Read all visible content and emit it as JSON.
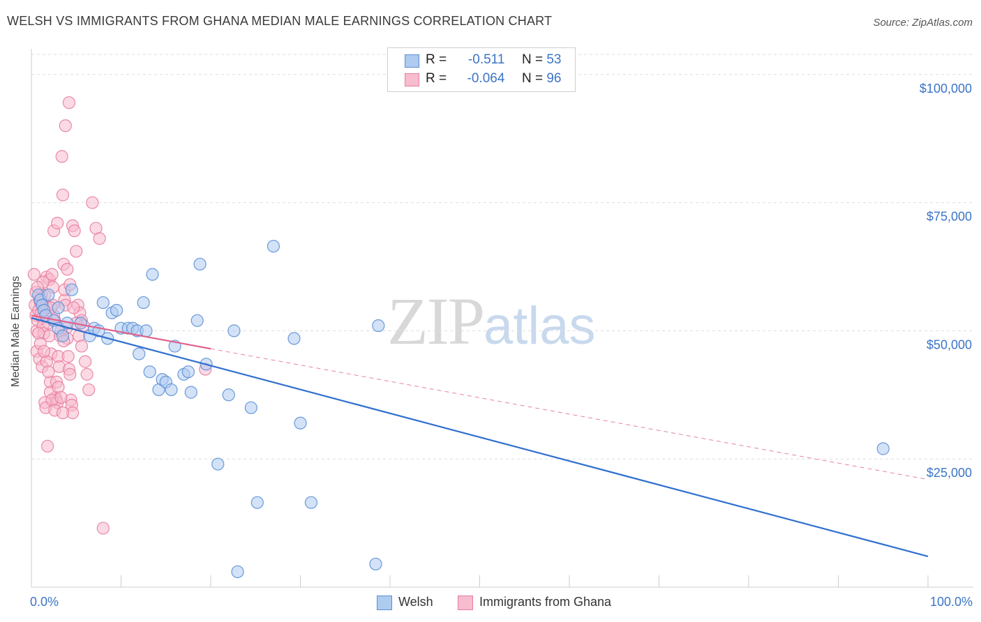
{
  "title": "WELSH VS IMMIGRANTS FROM GHANA MEDIAN MALE EARNINGS CORRELATION CHART",
  "source": "Source: ZipAtlas.com",
  "watermark": {
    "zip": "ZIP",
    "atlas": "atlas"
  },
  "colors": {
    "welsh_fill": "#aecbf0",
    "welsh_stroke": "#5b8fd6",
    "welsh_line": "#2f6fcf",
    "ghana_fill": "#f7bccd",
    "ghana_stroke": "#e77da0",
    "ghana_line": "#e0628c",
    "grid": "#dddddd",
    "axis_text": "#3a74c8"
  },
  "legend_top": {
    "welsh": {
      "r_label": "R =",
      "r_value": "-0.511",
      "n_label": "N =",
      "n_value": "53"
    },
    "ghana": {
      "r_label": "R =",
      "r_value": "-0.064",
      "n_label": "N =",
      "n_value": "96"
    }
  },
  "legend_bottom": {
    "welsh": "Welsh",
    "ghana": "Immigrants from Ghana"
  },
  "chart_data": {
    "type": "scatter",
    "title": "WELSH VS IMMIGRANTS FROM GHANA MEDIAN MALE EARNINGS CORRELATION CHART",
    "xlabel": "",
    "ylabel": "Median Male Earnings",
    "xlim": [
      0,
      100
    ],
    "ylim": [
      0,
      105000
    ],
    "x_tick_labels": [
      "0.0%",
      "100.0%"
    ],
    "y_ticks": [
      25000,
      50000,
      75000,
      100000
    ],
    "y_tick_labels": [
      "$25,000",
      "$50,000",
      "$75,000",
      "$100,000"
    ],
    "grid": true,
    "legend_position": "top-center",
    "series": [
      {
        "name": "Welsh",
        "r": -0.511,
        "n": 53,
        "trend": {
          "x0": 0,
          "y0": 52500,
          "x1": 100,
          "y1": 6000,
          "style": "solid"
        },
        "points": [
          [
            0.8,
            57000
          ],
          [
            1.0,
            56000
          ],
          [
            1.2,
            55000
          ],
          [
            1.4,
            54000
          ],
          [
            1.6,
            53000
          ],
          [
            1.9,
            57000
          ],
          [
            2.5,
            52000
          ],
          [
            3.0,
            50500
          ],
          [
            3.5,
            49000
          ],
          [
            3.0,
            54500
          ],
          [
            4.0,
            51500
          ],
          [
            4.5,
            58000
          ],
          [
            5.5,
            51500
          ],
          [
            6.5,
            49000
          ],
          [
            7.0,
            50500
          ],
          [
            7.5,
            50000
          ],
          [
            8.0,
            55500
          ],
          [
            8.5,
            48500
          ],
          [
            9.0,
            53500
          ],
          [
            9.5,
            54000
          ],
          [
            10.0,
            50500
          ],
          [
            10.8,
            50500
          ],
          [
            11.3,
            50500
          ],
          [
            11.8,
            50000
          ],
          [
            12.5,
            55500
          ],
          [
            12.0,
            45500
          ],
          [
            12.8,
            50000
          ],
          [
            13.2,
            42000
          ],
          [
            13.5,
            61000
          ],
          [
            14.2,
            38500
          ],
          [
            14.6,
            40500
          ],
          [
            15.0,
            40000
          ],
          [
            15.6,
            38500
          ],
          [
            16.0,
            47000
          ],
          [
            17.0,
            41500
          ],
          [
            17.5,
            42000
          ],
          [
            17.8,
            38000
          ],
          [
            18.5,
            52000
          ],
          [
            18.8,
            63000
          ],
          [
            19.5,
            43500
          ],
          [
            20.8,
            24000
          ],
          [
            22.0,
            37500
          ],
          [
            22.6,
            50000
          ],
          [
            23.0,
            3000
          ],
          [
            24.5,
            35000
          ],
          [
            25.2,
            16500
          ],
          [
            27.0,
            66500
          ],
          [
            29.3,
            48500
          ],
          [
            30.0,
            32000
          ],
          [
            31.2,
            16500
          ],
          [
            38.4,
            4500
          ],
          [
            38.7,
            51000
          ],
          [
            95.0,
            27000
          ]
        ]
      },
      {
        "name": "Immigrants from Ghana",
        "r": -0.064,
        "n": 96,
        "trend": {
          "x0": 0,
          "y0": 53000,
          "x1": 20,
          "y1": 46500,
          "x_end": 100,
          "y_end": 21000,
          "style": "solid-then-dashed"
        },
        "points": [
          [
            0.3,
            61000
          ],
          [
            0.4,
            55000
          ],
          [
            0.5,
            53000
          ],
          [
            0.6,
            50000
          ],
          [
            0.7,
            52000
          ],
          [
            0.8,
            54000
          ],
          [
            0.9,
            56000
          ],
          [
            1.0,
            55500
          ],
          [
            1.1,
            53500
          ],
          [
            1.2,
            52500
          ],
          [
            1.3,
            51000
          ],
          [
            1.4,
            49500
          ],
          [
            1.5,
            57000
          ],
          [
            1.6,
            55000
          ],
          [
            1.7,
            60500
          ],
          [
            1.8,
            54500
          ],
          [
            1.9,
            51500
          ],
          [
            2.0,
            49000
          ],
          [
            0.6,
            46000
          ],
          [
            0.9,
            44500
          ],
          [
            1.2,
            43000
          ],
          [
            1.5,
            36000
          ],
          [
            1.6,
            35000
          ],
          [
            1.8,
            27500
          ],
          [
            2.1,
            40000
          ],
          [
            2.2,
            45500
          ],
          [
            2.0,
            60000
          ],
          [
            2.3,
            61000
          ],
          [
            2.4,
            55000
          ],
          [
            2.5,
            53000
          ],
          [
            2.6,
            52000
          ],
          [
            2.7,
            37000
          ],
          [
            2.8,
            36500
          ],
          [
            2.9,
            36000
          ],
          [
            3.0,
            45000
          ],
          [
            3.1,
            43000
          ],
          [
            3.2,
            49000
          ],
          [
            2.5,
            69500
          ],
          [
            2.9,
            71000
          ],
          [
            3.4,
            84000
          ],
          [
            3.5,
            76500
          ],
          [
            3.6,
            63000
          ],
          [
            3.7,
            56000
          ],
          [
            3.8,
            55000
          ],
          [
            3.9,
            50500
          ],
          [
            4.0,
            48500
          ],
          [
            4.1,
            45000
          ],
          [
            4.2,
            42500
          ],
          [
            4.3,
            41500
          ],
          [
            4.4,
            36500
          ],
          [
            4.5,
            35500
          ],
          [
            4.6,
            34000
          ],
          [
            3.8,
            90000
          ],
          [
            4.2,
            94500
          ],
          [
            4.6,
            70500
          ],
          [
            4.8,
            69500
          ],
          [
            5.0,
            65500
          ],
          [
            5.2,
            55000
          ],
          [
            5.4,
            53500
          ],
          [
            5.6,
            52000
          ],
          [
            5.8,
            51000
          ],
          [
            6.0,
            44000
          ],
          [
            6.2,
            41500
          ],
          [
            6.4,
            38500
          ],
          [
            6.8,
            75000
          ],
          [
            7.2,
            70000
          ],
          [
            7.6,
            68000
          ],
          [
            8.0,
            11500
          ],
          [
            3.3,
            50000
          ],
          [
            3.6,
            48000
          ],
          [
            2.2,
            54500
          ],
          [
            2.4,
            58500
          ],
          [
            1.1,
            57000
          ],
          [
            1.3,
            59500
          ],
          [
            0.8,
            49500
          ],
          [
            1.0,
            47500
          ],
          [
            1.7,
            44000
          ],
          [
            1.9,
            42000
          ],
          [
            2.1,
            38000
          ],
          [
            2.3,
            36500
          ],
          [
            2.6,
            34500
          ],
          [
            2.8,
            40000
          ],
          [
            3.0,
            39000
          ],
          [
            3.3,
            37000
          ],
          [
            3.5,
            34000
          ],
          [
            3.7,
            58000
          ],
          [
            4.0,
            62000
          ],
          [
            4.3,
            59000
          ],
          [
            4.7,
            54500
          ],
          [
            5.0,
            51500
          ],
          [
            5.3,
            49000
          ],
          [
            5.6,
            47000
          ],
          [
            19.4,
            42500
          ],
          [
            0.5,
            57500
          ],
          [
            0.7,
            58500
          ],
          [
            1.4,
            46000
          ]
        ]
      }
    ]
  }
}
